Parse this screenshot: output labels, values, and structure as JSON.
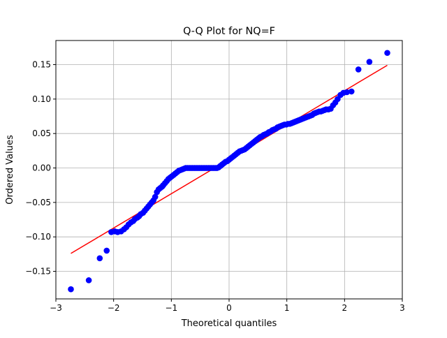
{
  "chart_data": {
    "type": "scatter",
    "title": "Q-Q Plot for NQ=F",
    "xlabel": "Theoretical quantiles",
    "ylabel": "Ordered Values",
    "xlim": [
      -3.0,
      3.0
    ],
    "ylim": [
      -0.19,
      0.185
    ],
    "xticks": [
      -3,
      -2,
      -1,
      0,
      1,
      2,
      3
    ],
    "xtick_labels": [
      "−3",
      "−2",
      "−1",
      "0",
      "1",
      "2",
      "3"
    ],
    "yticks": [
      -0.15,
      -0.1,
      -0.05,
      0.0,
      0.05,
      0.1,
      0.15
    ],
    "ytick_labels": [
      "−0.15",
      "−0.10",
      "−0.05",
      "0.00",
      "0.05",
      "0.10",
      "0.15"
    ],
    "grid": true,
    "colors": {
      "points": "#0000ff",
      "fit_line": "#ff0000",
      "grid": "#b0b0b0"
    },
    "fit_line": {
      "x": [
        -2.74,
        2.74
      ],
      "y": [
        -0.124,
        0.149
      ]
    },
    "points": {
      "x": [
        -2.74,
        -2.43,
        -2.24,
        -2.12,
        -2.04,
        -1.98,
        -1.93,
        -1.87,
        -1.82,
        -1.78,
        -1.74,
        -1.7,
        -1.66,
        -1.63,
        -1.59,
        -1.56,
        -1.53,
        -1.49,
        -1.46,
        -1.43,
        -1.4,
        -1.37,
        -1.34,
        -1.31,
        -1.28,
        -1.25,
        -1.22,
        -1.19,
        -1.16,
        -1.14,
        -1.11,
        -1.08,
        -1.05,
        -1.02,
        -0.99,
        -0.96,
        -0.93,
        -0.9,
        -0.87,
        -0.84,
        -0.81,
        -0.78,
        -0.75,
        -0.72,
        -0.69,
        -0.66,
        -0.63,
        -0.6,
        -0.57,
        -0.54,
        -0.51,
        -0.48,
        -0.45,
        -0.42,
        -0.39,
        -0.36,
        -0.33,
        -0.3,
        -0.27,
        -0.24,
        -0.21,
        -0.18,
        -0.15,
        -0.12,
        -0.09,
        -0.06,
        -0.03,
        0.0,
        0.03,
        0.06,
        0.09,
        0.12,
        0.15,
        0.18,
        0.21,
        0.24,
        0.27,
        0.3,
        0.33,
        0.36,
        0.39,
        0.42,
        0.45,
        0.48,
        0.51,
        0.54,
        0.57,
        0.6,
        0.63,
        0.66,
        0.69,
        0.72,
        0.75,
        0.78,
        0.81,
        0.84,
        0.87,
        0.9,
        0.93,
        0.96,
        0.99,
        1.02,
        1.05,
        1.08,
        1.11,
        1.14,
        1.17,
        1.2,
        1.23,
        1.26,
        1.29,
        1.32,
        1.35,
        1.38,
        1.41,
        1.44,
        1.47,
        1.5,
        1.53,
        1.56,
        1.59,
        1.62,
        1.65,
        1.68,
        1.72,
        1.76,
        1.8,
        1.84,
        1.88,
        1.93,
        1.98,
        2.04,
        2.12,
        2.24,
        2.43,
        2.74
      ],
      "y": [
        -0.176,
        -0.163,
        -0.131,
        -0.12,
        -0.093,
        -0.092,
        -0.093,
        -0.092,
        -0.089,
        -0.086,
        -0.082,
        -0.079,
        -0.077,
        -0.074,
        -0.072,
        -0.07,
        -0.067,
        -0.065,
        -0.062,
        -0.059,
        -0.056,
        -0.053,
        -0.05,
        -0.047,
        -0.042,
        -0.035,
        -0.031,
        -0.029,
        -0.027,
        -0.025,
        -0.022,
        -0.019,
        -0.016,
        -0.014,
        -0.012,
        -0.01,
        -0.008,
        -0.006,
        -0.004,
        -0.003,
        -0.002,
        -0.001,
        0.0,
        0.0,
        0.0,
        0.0,
        0.0,
        0.0,
        0.0,
        0.0,
        0.0,
        0.0,
        0.0,
        0.0,
        0.0,
        0.0,
        0.0,
        0.0,
        0.0,
        0.0,
        0.0,
        0.001,
        0.003,
        0.005,
        0.007,
        0.009,
        0.01,
        0.012,
        0.014,
        0.016,
        0.018,
        0.02,
        0.022,
        0.024,
        0.025,
        0.026,
        0.027,
        0.029,
        0.031,
        0.033,
        0.035,
        0.037,
        0.039,
        0.041,
        0.043,
        0.045,
        0.046,
        0.048,
        0.049,
        0.05,
        0.052,
        0.053,
        0.055,
        0.056,
        0.057,
        0.059,
        0.06,
        0.061,
        0.062,
        0.063,
        0.063,
        0.064,
        0.064,
        0.065,
        0.066,
        0.067,
        0.068,
        0.069,
        0.07,
        0.071,
        0.072,
        0.073,
        0.074,
        0.075,
        0.076,
        0.077,
        0.079,
        0.08,
        0.081,
        0.082,
        0.082,
        0.083,
        0.084,
        0.085,
        0.085,
        0.086,
        0.091,
        0.095,
        0.1,
        0.106,
        0.109,
        0.11,
        0.111,
        0.143,
        0.154,
        0.167
      ]
    }
  }
}
